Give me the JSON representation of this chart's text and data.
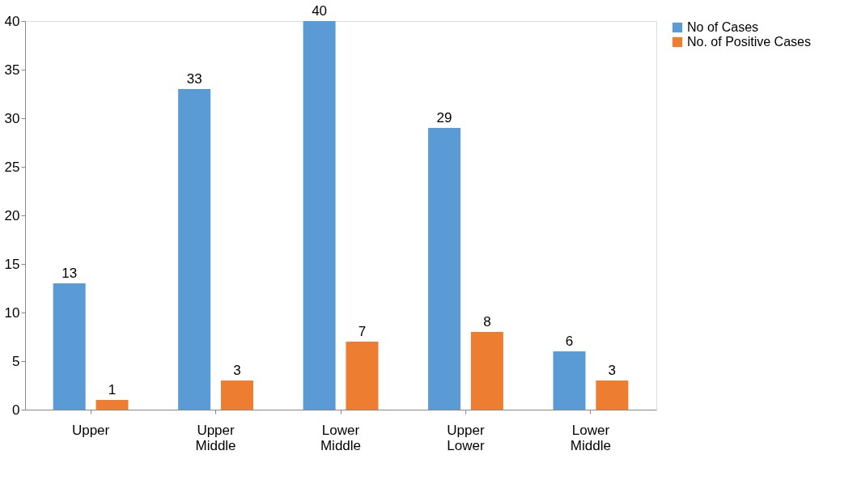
{
  "chart_data": {
    "type": "bar",
    "categories": [
      "Upper",
      "Upper Middle",
      "Lower Middle",
      "Upper Lower",
      "Lower Middle"
    ],
    "series": [
      {
        "name": "No of Cases",
        "color": "#5b9bd5",
        "values": [
          13,
          33,
          40,
          29,
          6
        ]
      },
      {
        "name": "No. of Positive Cases",
        "color": "#ed7d31",
        "values": [
          1,
          3,
          7,
          8,
          3
        ]
      }
    ],
    "ylim": [
      0,
      40
    ],
    "yticks": [
      0,
      5,
      10,
      15,
      20,
      25,
      30,
      35,
      40
    ],
    "grid": false,
    "legend": "right",
    "data_labels": true
  }
}
